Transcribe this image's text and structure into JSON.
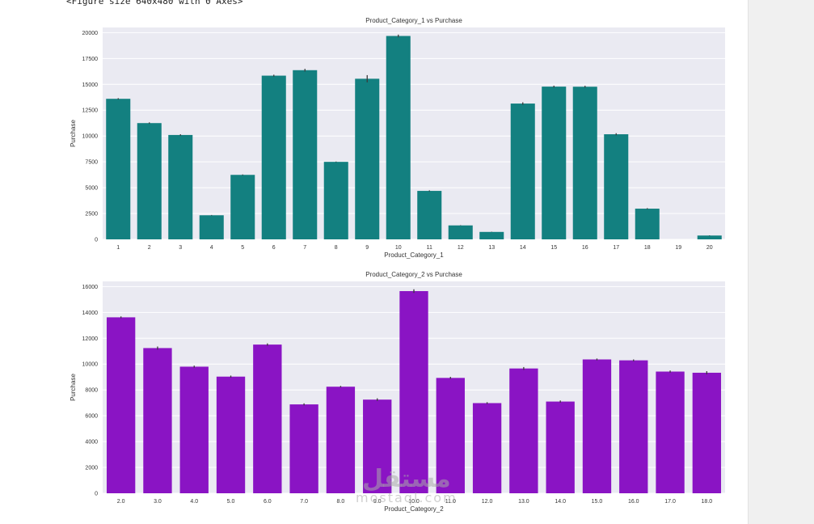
{
  "notebook": {
    "output_text": "<Figure size 640x480 with 0 Axes>"
  },
  "watermark": {
    "arabic": "مستقل",
    "latin": "mostaql.com"
  },
  "colors": {
    "panel_bg": "#eaeaf2",
    "grid": "#ffffff",
    "errbar": "#3a3a3a"
  },
  "chart_data": [
    {
      "type": "bar",
      "title": "Product_Category_1 vs Purchase",
      "xlabel": "Product_Category_1",
      "ylabel": "Purchase",
      "color": "#138080",
      "ylim": [
        0,
        20500
      ],
      "yticks": [
        0,
        2500,
        5000,
        7500,
        10000,
        12500,
        15000,
        17500,
        20000
      ],
      "categories": [
        "1",
        "2",
        "3",
        "4",
        "5",
        "6",
        "7",
        "8",
        "9",
        "10",
        "11",
        "12",
        "13",
        "14",
        "15",
        "16",
        "17",
        "18",
        "19",
        "20"
      ],
      "values": [
        13600,
        11250,
        10100,
        2330,
        6240,
        15840,
        16370,
        7500,
        15540,
        19680,
        4690,
        1350,
        720,
        13140,
        14780,
        14770,
        10170,
        2970,
        0,
        370
      ],
      "errors": [
        60,
        70,
        70,
        25,
        40,
        90,
        130,
        30,
        350,
        130,
        50,
        20,
        15,
        120,
        90,
        90,
        100,
        50,
        0,
        20
      ],
      "grid": true
    },
    {
      "type": "bar",
      "title": "Product_Category_2 vs Purchase",
      "xlabel": "Product_Category_2",
      "ylabel": "Purchase",
      "color": "#8a14c4",
      "ylim": [
        0,
        16400
      ],
      "yticks": [
        0,
        2000,
        4000,
        6000,
        8000,
        10000,
        12000,
        14000,
        16000
      ],
      "categories": [
        "2.0",
        "3.0",
        "4.0",
        "5.0",
        "6.0",
        "7.0",
        "8.0",
        "9.0",
        "10.0",
        "11.0",
        "12.0",
        "13.0",
        "14.0",
        "15.0",
        "16.0",
        "17.0",
        "18.0"
      ],
      "values": [
        13620,
        11240,
        9800,
        9030,
        11510,
        6880,
        8250,
        7250,
        15650,
        8930,
        6980,
        9660,
        7100,
        10360,
        10290,
        9420,
        9330
      ],
      "errors": [
        70,
        120,
        80,
        80,
        90,
        80,
        60,
        100,
        140,
        80,
        70,
        110,
        80,
        70,
        70,
        80,
        120
      ],
      "grid": true
    }
  ]
}
